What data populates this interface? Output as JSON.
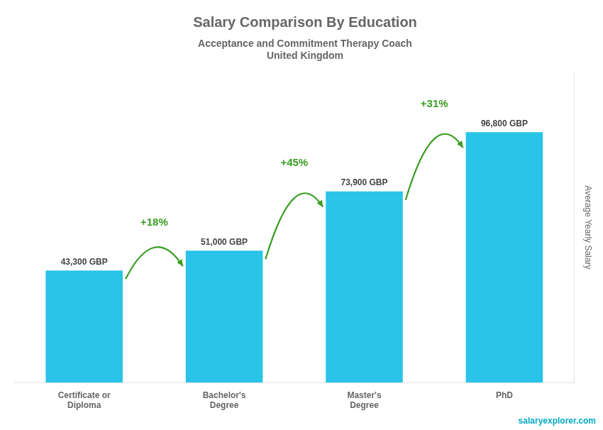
{
  "chart_data": {
    "type": "bar",
    "title": "Salary Comparison By Education",
    "subtitle": [
      "Acceptance and Commitment Therapy Coach",
      "United Kingdom"
    ],
    "ylabel": "Average Yearly Salary",
    "categories": [
      "Certificate or\nDiploma",
      "Bachelor's\nDegree",
      "Master's\nDegree",
      "PhD"
    ],
    "values": [
      43300,
      51000,
      73900,
      96800
    ],
    "value_labels": [
      "43,300 GBP",
      "51,000 GBP",
      "73,900 GBP",
      "96,800 GBP"
    ],
    "data_labels": true,
    "color": "#29C4E8",
    "ylim": [
      0,
      120000
    ],
    "tick_labels": "x",
    "grid": false,
    "annotations": [
      {
        "text": "+18%",
        "from": "Certificate or\nDiploma",
        "to": "Bachelor's\nDegree"
      },
      {
        "text": "+45%",
        "from": "Bachelor's\nDegree",
        "to": "Master's\nDegree"
      },
      {
        "text": "+31%",
        "from": "Master's\nDegree",
        "to": "PhD"
      },
      {
        "text": "salaryexplorer.com"
      }
    ]
  }
}
